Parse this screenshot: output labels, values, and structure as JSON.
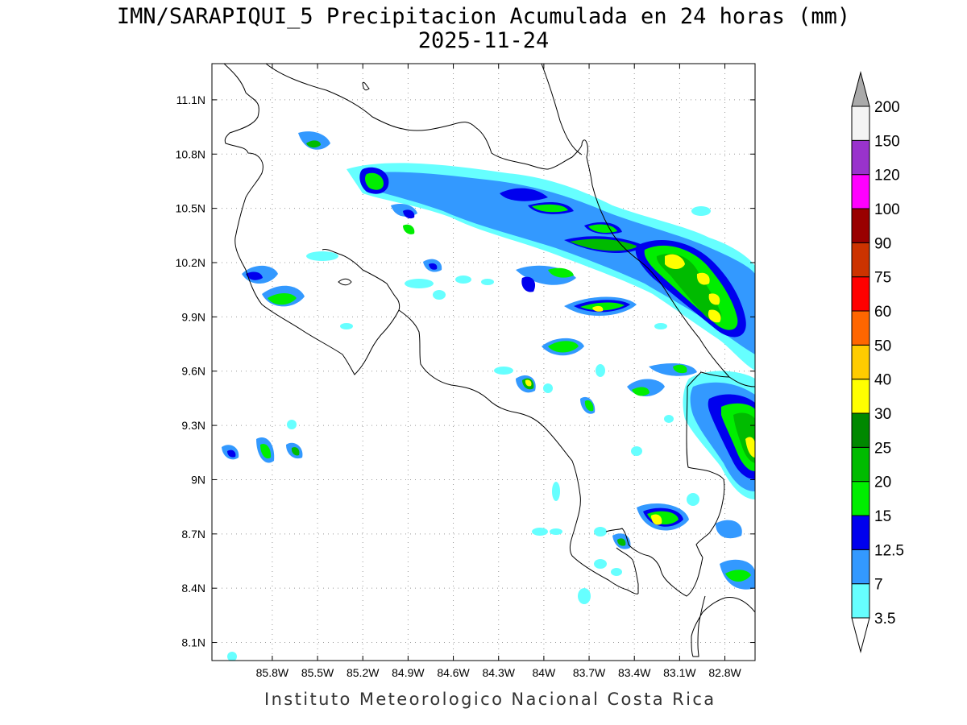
{
  "title": {
    "line1": "IMN/SARAPIQUI_5 Precipitacion Acumulada en 24 horas (mm)",
    "line2": "2025-11-24"
  },
  "footer": "Instituto Meteorologico Nacional Costa Rica",
  "map": {
    "lon_range": [
      -86.2,
      -82.6
    ],
    "lat_range": [
      8.0,
      11.3
    ],
    "lon_ticks": [
      "85.8W",
      "85.5W",
      "85.2W",
      "84.9W",
      "84.6W",
      "84.3W",
      "84W",
      "83.7W",
      "83.4W",
      "83.1W",
      "82.8W"
    ],
    "lat_ticks": [
      "11.1N",
      "10.8N",
      "10.5N",
      "10.2N",
      "9.9N",
      "9.6N",
      "9.3N",
      "9N",
      "8.7N",
      "8.4N",
      "8.1N"
    ],
    "grid": "dotted"
  },
  "legend": {
    "levels": [
      "3.5",
      "7",
      "12.5",
      "15",
      "20",
      "25",
      "30",
      "40",
      "50",
      "60",
      "75",
      "90",
      "100",
      "120",
      "150",
      "200"
    ],
    "colors": [
      "#ffffff",
      "#66ffff",
      "#3399ff",
      "#0000ee",
      "#00ee00",
      "#00bb00",
      "#008800",
      "#ffff00",
      "#ffcc00",
      "#ff6600",
      "#ff0000",
      "#cc3300",
      "#990000",
      "#ff00ff",
      "#9933cc",
      "#f4f4f4",
      "#aaaaaa"
    ]
  },
  "precip_colors": {
    "c1": "#66ffff",
    "c2": "#3399ff",
    "c3": "#0000ee",
    "c4": "#00ee00",
    "c5": "#00bb00",
    "c6": "#ffff00"
  }
}
